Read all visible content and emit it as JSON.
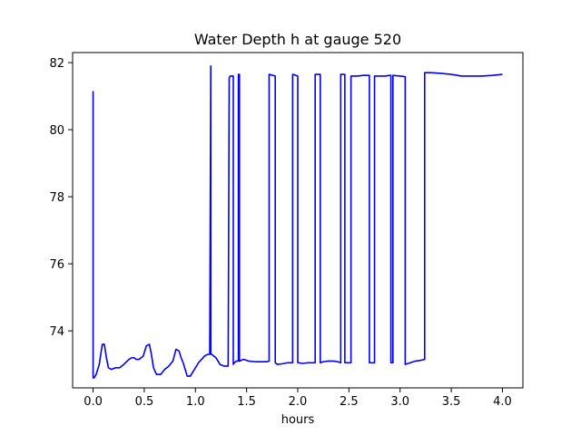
{
  "chart_data": {
    "type": "line",
    "title": "Water Depth h at gauge 520",
    "xlabel": "hours",
    "ylabel": "",
    "xlim": [
      -0.2,
      4.2
    ],
    "ylim": [
      72.3,
      82.3
    ],
    "xticks": [
      0.0,
      0.5,
      1.0,
      1.5,
      2.0,
      2.5,
      3.0,
      3.5,
      4.0
    ],
    "xtick_labels": [
      "0.0",
      "0.5",
      "1.0",
      "1.5",
      "2.0",
      "2.5",
      "3.0",
      "3.5",
      "4.0"
    ],
    "yticks": [
      74,
      76,
      78,
      80,
      82
    ],
    "ytick_labels": [
      "74",
      "76",
      "78",
      "80",
      "82"
    ],
    "grid": false,
    "series": [
      {
        "color": "#0000ff",
        "x": [
          0.0,
          0.0,
          0.0,
          0.01,
          0.03,
          0.06,
          0.09,
          0.11,
          0.13,
          0.15,
          0.18,
          0.22,
          0.26,
          0.3,
          0.35,
          0.38,
          0.4,
          0.42,
          0.45,
          0.49,
          0.52,
          0.55,
          0.57,
          0.59,
          0.62,
          0.66,
          0.7,
          0.74,
          0.78,
          0.81,
          0.84,
          0.86,
          0.88,
          0.9,
          0.92,
          0.95,
          0.98,
          1.0,
          1.03,
          1.06,
          1.09,
          1.12,
          1.14,
          1.15,
          1.15,
          1.16,
          1.16,
          1.2,
          1.24,
          1.28,
          1.3,
          1.32,
          1.33,
          1.34,
          1.36,
          1.37,
          1.37,
          1.38,
          1.4,
          1.42,
          1.42,
          1.43,
          1.43,
          1.47,
          1.52,
          1.58,
          1.64,
          1.7,
          1.72,
          1.72,
          1.78,
          1.78,
          1.8,
          1.85,
          1.9,
          1.95,
          1.95,
          2.0,
          2.0,
          2.05,
          2.1,
          2.15,
          2.17,
          2.17,
          2.22,
          2.22,
          2.25,
          2.3,
          2.35,
          2.39,
          2.42,
          2.42,
          2.46,
          2.46,
          2.48,
          2.5,
          2.52,
          2.52,
          2.58,
          2.64,
          2.7,
          2.7,
          2.75,
          2.75,
          2.8,
          2.85,
          2.9,
          2.91,
          2.91,
          2.93,
          2.93,
          3.0,
          3.05,
          3.05,
          3.1,
          3.15,
          3.2,
          3.24,
          3.24,
          3.3,
          3.4,
          3.5,
          3.6,
          3.7,
          3.8,
          3.9,
          4.0
        ],
        "y": [
          81.15,
          72.6,
          72.6,
          72.6,
          72.7,
          73.0,
          73.6,
          73.6,
          73.2,
          72.9,
          72.85,
          72.9,
          72.9,
          73.0,
          73.15,
          73.2,
          73.2,
          73.15,
          73.15,
          73.25,
          73.55,
          73.6,
          73.3,
          72.9,
          72.7,
          72.7,
          72.85,
          72.95,
          73.1,
          73.45,
          73.4,
          73.2,
          73.05,
          72.85,
          72.65,
          72.65,
          72.8,
          72.9,
          73.05,
          73.15,
          73.25,
          73.3,
          73.3,
          81.9,
          73.3,
          73.3,
          73.3,
          73.2,
          73.0,
          72.95,
          72.95,
          72.95,
          81.55,
          81.6,
          81.6,
          81.6,
          73.0,
          73.05,
          73.1,
          73.1,
          81.65,
          81.65,
          73.1,
          73.15,
          73.1,
          73.08,
          73.08,
          73.08,
          73.1,
          81.65,
          81.6,
          73.05,
          73.0,
          73.02,
          73.05,
          73.05,
          81.65,
          81.6,
          73.05,
          73.03,
          73.05,
          73.05,
          73.05,
          81.65,
          81.65,
          73.05,
          73.08,
          73.1,
          73.1,
          73.08,
          73.05,
          81.65,
          81.65,
          73.05,
          73.05,
          73.05,
          73.05,
          81.6,
          81.6,
          81.62,
          81.62,
          73.05,
          73.05,
          81.6,
          81.6,
          81.6,
          81.62,
          81.62,
          73.05,
          73.05,
          81.62,
          81.6,
          81.58,
          73.0,
          73.05,
          73.1,
          73.12,
          73.15,
          81.7,
          81.7,
          81.68,
          81.65,
          81.6,
          81.6,
          81.6,
          81.62,
          81.65
        ]
      }
    ]
  }
}
